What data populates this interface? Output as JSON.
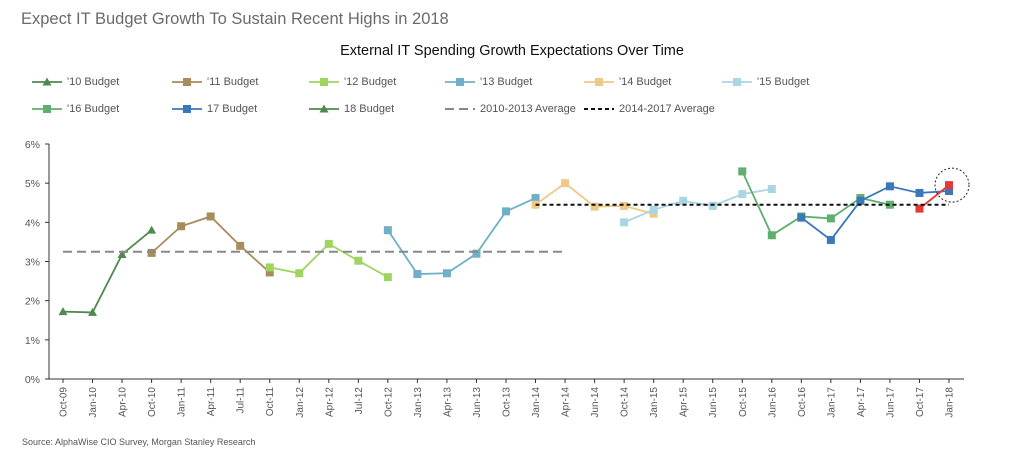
{
  "page": {
    "headline": "Expect IT Budget Growth To Sustain Recent Highs in 2018",
    "source": "Source: AlphaWise CIO Survey, Morgan Stanley Research"
  },
  "chart_data": {
    "type": "line",
    "title": "External IT Spending Growth Expectations Over Time",
    "xlabel": "",
    "ylabel": "",
    "categories": [
      "Oct-09",
      "Jan-10",
      "Apr-10",
      "Oct-10",
      "Jan-11",
      "Apr-11",
      "Jul-11",
      "Oct-11",
      "Jan-12",
      "Apr-12",
      "Jul-12",
      "Oct-12",
      "Jan-13",
      "Apr-13",
      "Jun-13",
      "Oct-13",
      "Jan-14",
      "Apr-14",
      "Jun-14",
      "Oct-14",
      "Jan-15",
      "Apr-15",
      "Jun-15",
      "Oct-15",
      "Jun-16",
      "Oct-16",
      "Jan-17",
      "Apr-17",
      "Jun-17",
      "Oct-17",
      "Jan-18"
    ],
    "y_ticks": [
      "0%",
      "1%",
      "2%",
      "3%",
      "4%",
      "5%",
      "6%"
    ],
    "ylim": [
      0,
      6
    ],
    "grid": false,
    "legend_position": "top",
    "series": [
      {
        "name": "'10 Budget",
        "color": "#4e8a4e",
        "marker": "triangle",
        "dash": "solid",
        "points": [
          {
            "x": 0,
            "y": 1.72
          },
          {
            "x": 1,
            "y": 1.7
          },
          {
            "x": 2,
            "y": 3.18
          },
          {
            "x": 3,
            "y": 3.8
          }
        ]
      },
      {
        "name": "'11 Budget",
        "color": "#a88c5a",
        "marker": "square",
        "dash": "solid",
        "points": [
          {
            "x": 3,
            "y": 3.22
          },
          {
            "x": 4,
            "y": 3.9
          },
          {
            "x": 5,
            "y": 4.15
          },
          {
            "x": 6,
            "y": 3.4
          },
          {
            "x": 7,
            "y": 2.72
          }
        ]
      },
      {
        "name": "'12 Budget",
        "color": "#9fd460",
        "marker": "square",
        "dash": "solid",
        "points": [
          {
            "x": 7,
            "y": 2.85
          },
          {
            "x": 8,
            "y": 2.7
          },
          {
            "x": 9,
            "y": 3.45
          },
          {
            "x": 10,
            "y": 3.02
          },
          {
            "x": 11,
            "y": 2.6
          }
        ]
      },
      {
        "name": "'13 Budget",
        "color": "#6fb0c9",
        "marker": "square",
        "dash": "solid",
        "points": [
          {
            "x": 11,
            "y": 3.8
          },
          {
            "x": 12,
            "y": 2.68
          },
          {
            "x": 13,
            "y": 2.7
          },
          {
            "x": 14,
            "y": 3.2
          },
          {
            "x": 15,
            "y": 4.28
          },
          {
            "x": 16,
            "y": 4.62
          }
        ]
      },
      {
        "name": "'14 Budget",
        "color": "#efc986",
        "marker": "square",
        "dash": "solid",
        "points": [
          {
            "x": 16,
            "y": 4.45
          },
          {
            "x": 17,
            "y": 5.0
          },
          {
            "x": 18,
            "y": 4.4
          },
          {
            "x": 19,
            "y": 4.42
          },
          {
            "x": 20,
            "y": 4.22
          }
        ]
      },
      {
        "name": "'15 Budget",
        "color": "#aad6e3",
        "marker": "square",
        "dash": "solid",
        "points": [
          {
            "x": 19,
            "y": 4.0
          },
          {
            "x": 20,
            "y": 4.32
          },
          {
            "x": 21,
            "y": 4.55
          },
          {
            "x": 22,
            "y": 4.42
          },
          {
            "x": 23,
            "y": 4.72
          },
          {
            "x": 24,
            "y": 4.85
          }
        ]
      },
      {
        "name": "'16 Budget",
        "color": "#5faf6e",
        "marker": "square",
        "dash": "solid",
        "points": [
          {
            "x": 23,
            "y": 5.3
          },
          {
            "x": 24,
            "y": 3.67
          },
          {
            "x": 25,
            "y": 4.15
          },
          {
            "x": 26,
            "y": 4.1
          },
          {
            "x": 27,
            "y": 4.62
          },
          {
            "x": 28,
            "y": 4.45
          }
        ]
      },
      {
        "name": "17 Budget",
        "color": "#3a78b8",
        "marker": "square",
        "dash": "solid",
        "points": [
          {
            "x": 25,
            "y": 4.12
          },
          {
            "x": 26,
            "y": 3.55
          },
          {
            "x": 27,
            "y": 4.55
          },
          {
            "x": 28,
            "y": 4.92
          },
          {
            "x": 29,
            "y": 4.75
          },
          {
            "x": 30,
            "y": 4.8
          }
        ]
      },
      {
        "name": "18 Budget",
        "color": "#4e8a4e",
        "marker": "triangle",
        "dash": "solid",
        "legend_only": true,
        "points": []
      },
      {
        "name": "",
        "color": "#e53935",
        "marker": "square",
        "dash": "solid",
        "points": [
          {
            "x": 29,
            "y": 4.35
          },
          {
            "x": 30,
            "y": 4.95
          }
        ]
      },
      {
        "name": "2010-2013 Average",
        "color": "#888888",
        "marker": "none",
        "dash": "long",
        "points": [
          {
            "x": 0,
            "y": 3.25
          },
          {
            "x": 17,
            "y": 3.25
          }
        ]
      },
      {
        "name": "2014-2017 Average",
        "color": "#111111",
        "marker": "none",
        "dash": "short",
        "points": [
          {
            "x": 16,
            "y": 4.45
          },
          {
            "x": 30,
            "y": 4.45
          }
        ]
      }
    ],
    "annotations": [
      {
        "type": "dashed-circle",
        "x": 30,
        "y": 4.95
      }
    ]
  }
}
